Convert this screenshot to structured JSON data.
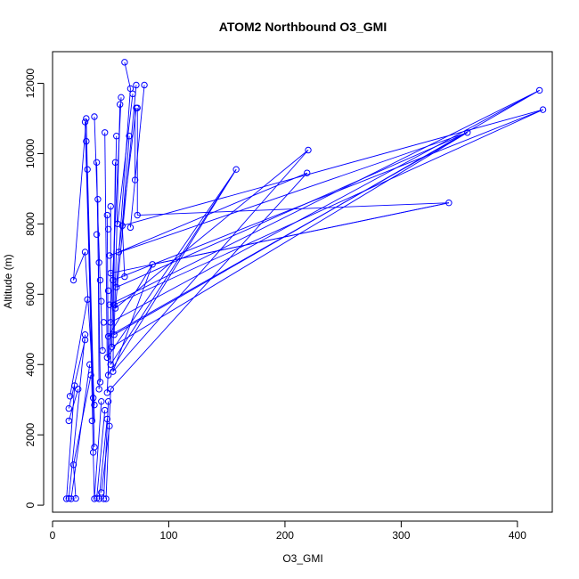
{
  "chart_data": {
    "type": "line",
    "title": "ATOM2 Northbound O3_GMI",
    "xlabel": "O3_GMI",
    "ylabel": "Altitude (m)",
    "xlim": [
      0,
      430
    ],
    "ylim": [
      -200,
      12900
    ],
    "x_ticks": [
      0,
      100,
      200,
      300,
      400
    ],
    "y_ticks": [
      0,
      2000,
      4000,
      6000,
      8000,
      10000,
      12000
    ],
    "x_tick_labels": [
      "0",
      "100",
      "200",
      "300",
      "400"
    ],
    "y_tick_labels": [
      "0",
      "2000",
      "4000",
      "6000",
      "8000",
      "10000",
      "12000"
    ],
    "grid": false,
    "legend": "none",
    "colors": {
      "series": "#0000ff",
      "axes": "#000000"
    },
    "series": [
      {
        "marker": "open-circle",
        "points": [
          [
            12,
            180
          ],
          [
            14,
            190
          ],
          [
            16,
            180
          ],
          [
            20,
            190
          ],
          [
            18,
            1150
          ],
          [
            14,
            2750
          ],
          [
            15,
            3100
          ],
          [
            14,
            2400
          ],
          [
            19,
            3400
          ],
          [
            22,
            3300
          ],
          [
            18,
            6400
          ],
          [
            28,
            4850
          ],
          [
            28,
            4700
          ],
          [
            30,
            5850
          ],
          [
            28,
            7200
          ],
          [
            32,
            4000
          ],
          [
            33,
            3700
          ],
          [
            30,
            9550
          ],
          [
            29,
            10350
          ],
          [
            28,
            10900
          ],
          [
            29,
            11000
          ],
          [
            35,
            3050
          ],
          [
            36,
            2850
          ],
          [
            34,
            2400
          ],
          [
            36,
            1650
          ],
          [
            35,
            1500
          ],
          [
            36,
            180
          ],
          [
            38,
            200
          ],
          [
            40,
            180
          ],
          [
            42,
            360
          ],
          [
            44,
            180
          ],
          [
            46,
            180
          ],
          [
            36,
            11050
          ],
          [
            38,
            9750
          ],
          [
            39,
            8700
          ],
          [
            38,
            7700
          ],
          [
            40,
            6900
          ],
          [
            41,
            6400
          ],
          [
            42,
            5800
          ],
          [
            44,
            5200
          ],
          [
            43,
            4400
          ],
          [
            41,
            3500
          ],
          [
            40,
            3300
          ],
          [
            42,
            2950
          ],
          [
            45,
            2700
          ],
          [
            47,
            2450
          ],
          [
            49,
            2250
          ],
          [
            45,
            10600
          ],
          [
            47,
            8250
          ],
          [
            48,
            7850
          ],
          [
            49,
            7100
          ],
          [
            50,
            6600
          ],
          [
            48,
            6100
          ],
          [
            49,
            5700
          ],
          [
            50,
            5200
          ],
          [
            48,
            4800
          ],
          [
            47,
            4200
          ],
          [
            48,
            3700
          ],
          [
            47,
            3200
          ],
          [
            48,
            2950
          ],
          [
            50,
            8500
          ],
          [
            52,
            6400
          ],
          [
            53,
            5700
          ],
          [
            51,
            4500
          ],
          [
            50,
            4000
          ],
          [
            52,
            3800
          ],
          [
            50,
            3300
          ],
          [
            55,
            10500
          ],
          [
            54,
            9750
          ],
          [
            56,
            8000
          ],
          [
            57,
            7200
          ],
          [
            55,
            6200
          ],
          [
            54,
            5600
          ],
          [
            53,
            4850
          ],
          [
            58,
            11400
          ],
          [
            59,
            11600
          ],
          [
            62,
            12600
          ],
          [
            67,
            11850
          ],
          [
            69,
            11700
          ],
          [
            72,
            11950
          ],
          [
            72,
            11300
          ],
          [
            73,
            11300
          ],
          [
            66,
            10500
          ],
          [
            60,
            7950
          ],
          [
            62,
            6500
          ],
          [
            67,
            7900
          ],
          [
            73,
            8250
          ],
          [
            71,
            9250
          ],
          [
            79,
            11950
          ],
          [
            86,
            6850
          ],
          [
            158,
            9550
          ],
          [
            220,
            10100
          ],
          [
            219,
            9450
          ],
          [
            341,
            8600
          ],
          [
            357,
            10600
          ],
          [
            419,
            11800
          ],
          [
            422,
            11250
          ]
        ],
        "segments": [
          [
            [
              12,
              180
            ],
            [
              19,
              3400
            ]
          ],
          [
            [
              14,
              190
            ],
            [
              28,
              4850
            ]
          ],
          [
            [
              16,
              180
            ],
            [
              32,
              4000
            ]
          ],
          [
            [
              20,
              190
            ],
            [
              18,
              1150
            ]
          ],
          [
            [
              18,
              1150
            ],
            [
              33,
              3700
            ]
          ],
          [
            [
              14,
              2750
            ],
            [
              28,
              4700
            ]
          ],
          [
            [
              15,
              3100
            ],
            [
              30,
              5850
            ]
          ],
          [
            [
              14,
              2400
            ],
            [
              22,
              3300
            ]
          ],
          [
            [
              18,
              6400
            ],
            [
              28,
              7200
            ]
          ],
          [
            [
              28,
              7200
            ],
            [
              36,
              2850
            ]
          ],
          [
            [
              30,
              9550
            ],
            [
              36,
              2400
            ]
          ],
          [
            [
              29,
              10350
            ],
            [
              35,
              3050
            ]
          ],
          [
            [
              28,
              10900
            ],
            [
              36,
              1650
            ]
          ],
          [
            [
              29,
              11000
            ],
            [
              35,
              1500
            ]
          ],
          [
            [
              35,
              1500
            ],
            [
              36,
              180
            ]
          ],
          [
            [
              36,
              180
            ],
            [
              42,
              2950
            ]
          ],
          [
            [
              38,
              200
            ],
            [
              45,
              2700
            ]
          ],
          [
            [
              40,
              180
            ],
            [
              47,
              2450
            ]
          ],
          [
            [
              42,
              360
            ],
            [
              49,
              2250
            ]
          ],
          [
            [
              44,
              180
            ],
            [
              48,
              2950
            ]
          ],
          [
            [
              46,
              180
            ],
            [
              50,
              3300
            ]
          ],
          [
            [
              36,
              11050
            ],
            [
              43,
              4400
            ]
          ],
          [
            [
              38,
              9750
            ],
            [
              41,
              3500
            ]
          ],
          [
            [
              39,
              8700
            ],
            [
              40,
              3300
            ]
          ],
          [
            [
              45,
              10600
            ],
            [
              47,
              4200
            ]
          ],
          [
            [
              47,
              8250
            ],
            [
              48,
              3700
            ]
          ],
          [
            [
              50,
              8500
            ],
            [
              50,
              4000
            ]
          ],
          [
            [
              55,
              10500
            ],
            [
              51,
              4500
            ]
          ],
          [
            [
              54,
              9750
            ],
            [
              52,
              3800
            ]
          ],
          [
            [
              58,
              11400
            ],
            [
              53,
              4850
            ]
          ],
          [
            [
              59,
              11600
            ],
            [
              47,
              3200
            ]
          ],
          [
            [
              62,
              12600
            ],
            [
              67,
              11850
            ]
          ],
          [
            [
              67,
              11850
            ],
            [
              55,
              6200
            ]
          ],
          [
            [
              69,
              11700
            ],
            [
              56,
              8000
            ]
          ],
          [
            [
              72,
              11950
            ],
            [
              54,
              5600
            ]
          ],
          [
            [
              72,
              11300
            ],
            [
              57,
              7200
            ]
          ],
          [
            [
              73,
              11300
            ],
            [
              73,
              8250
            ]
          ],
          [
            [
              66,
              10500
            ],
            [
              60,
              7950
            ]
          ],
          [
            [
              60,
              7950
            ],
            [
              62,
              6500
            ]
          ],
          [
            [
              79,
              11950
            ],
            [
              67,
              7900
            ]
          ],
          [
            [
              71,
              9250
            ],
            [
              71,
              11300
            ]
          ],
          [
            [
              18,
              6400
            ],
            [
              29,
              11000
            ]
          ],
          [
            [
              86,
              6850
            ],
            [
              48,
              4800
            ]
          ],
          [
            [
              86,
              6850
            ],
            [
              341,
              8600
            ]
          ],
          [
            [
              158,
              9550
            ],
            [
              50,
              4000
            ]
          ],
          [
            [
              158,
              9550
            ],
            [
              48,
              3700
            ]
          ],
          [
            [
              220,
              10100
            ],
            [
              52,
              3800
            ]
          ],
          [
            [
              219,
              9450
            ],
            [
              50,
              3300
            ]
          ],
          [
            [
              219,
              9450
            ],
            [
              57,
              7200
            ]
          ],
          [
            [
              341,
              8600
            ],
            [
              73,
              8250
            ]
          ],
          [
            [
              357,
              10600
            ],
            [
              48,
              4800
            ]
          ],
          [
            [
              357,
              10600
            ],
            [
              51,
              4500
            ]
          ],
          [
            [
              357,
              10600
            ],
            [
              55,
              6200
            ]
          ],
          [
            [
              419,
              11800
            ],
            [
              53,
              4850
            ]
          ],
          [
            [
              419,
              11800
            ],
            [
              49,
              5700
            ]
          ],
          [
            [
              422,
              11250
            ],
            [
              53,
              5700
            ]
          ],
          [
            [
              422,
              11250
            ],
            [
              60,
              7950
            ]
          ],
          [
            [
              422,
              11250
            ],
            [
              52,
              6400
            ]
          ],
          [
            [
              419,
              11800
            ],
            [
              50,
              5200
            ]
          ],
          [
            [
              341,
              8600
            ],
            [
              50,
              6600
            ]
          ],
          [
            [
              357,
              10600
            ],
            [
              49,
              7100
            ]
          ],
          [
            [
              220,
              10100
            ],
            [
              54,
              5600
            ]
          ],
          [
            [
              158,
              9550
            ],
            [
              47,
              4200
            ]
          ],
          [
            [
              86,
              6850
            ],
            [
              52,
              3800
            ]
          ]
        ]
      }
    ]
  }
}
